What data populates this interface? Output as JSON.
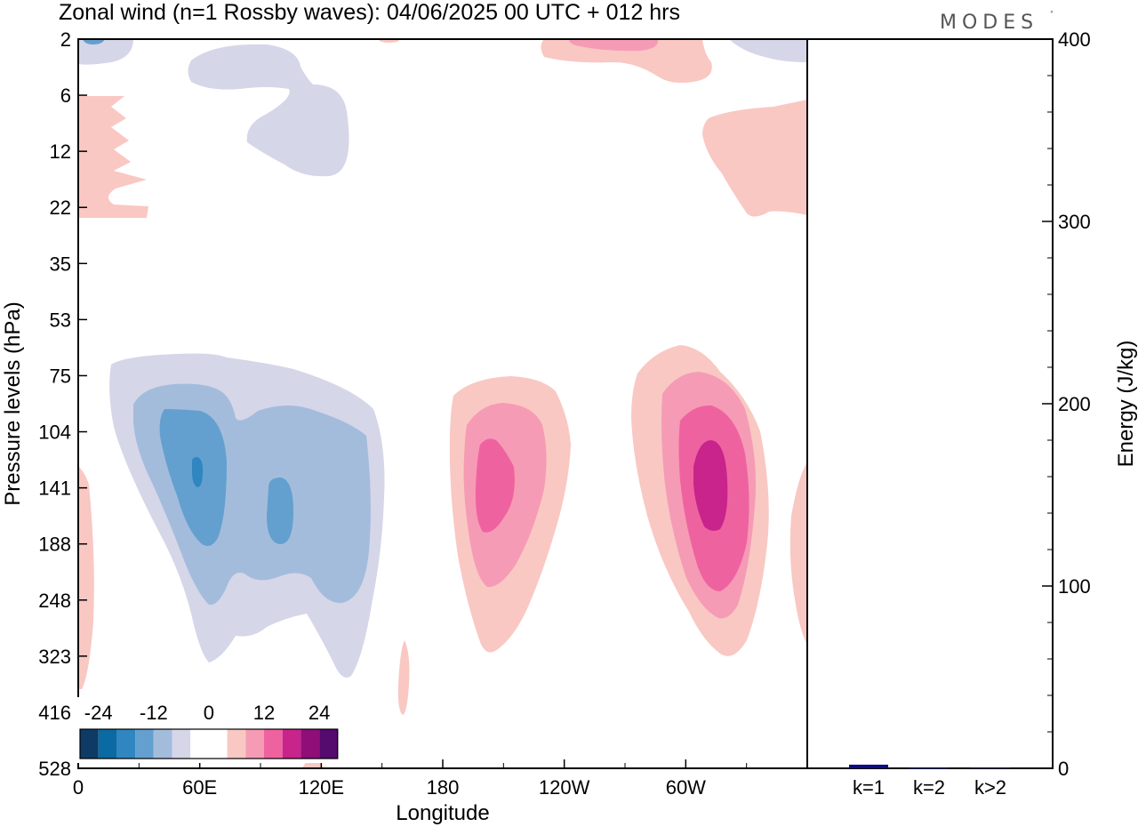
{
  "title": "Zonal wind (n=1 Rossby waves):  04/06/2025  00 UTC  + 012 hrs",
  "logo": "MODES",
  "chart_data": [
    {
      "type": "heatmap",
      "title": "Zonal wind (n=1 Rossby waves):  04/06/2025  00 UTC  + 012 hrs",
      "xlabel": "Longitude",
      "ylabel": "Pressure levels (hPa)",
      "x_ticks": [
        "0",
        "60E",
        "120E",
        "180",
        "120W",
        "60W"
      ],
      "x_tick_degrees": [
        0,
        60,
        120,
        180,
        240,
        300
      ],
      "xlim": [
        0,
        360
      ],
      "y_ticks": [
        "2",
        "6",
        "12",
        "22",
        "35",
        "53",
        "75",
        "104",
        "141",
        "188",
        "248",
        "323",
        "416",
        "528"
      ],
      "y_direction": "pressure increasing downward",
      "colorbar": {
        "labels": [
          "-24",
          "-12",
          "0",
          "12",
          "24"
        ],
        "colors": [
          "#0d3b66",
          "#0b6aa2",
          "#2f86c0",
          "#63a0cf",
          "#a4bcdc",
          "#d5d6e8",
          "#ffffff",
          "#ffffff",
          "#f9c8c3",
          "#f69bb5",
          "#ef62a0",
          "#c8248b",
          "#8e0f78",
          "#550b6e"
        ]
      },
      "features": [
        {
          "sign": "negative",
          "center_lon": 60,
          "center_level": "141",
          "min_value": -21
        },
        {
          "sign": "negative",
          "center_lon": 100,
          "center_level": "141",
          "min_value": -15
        },
        {
          "sign": "positive",
          "center_lon": 197,
          "center_level": "141",
          "max_value": 15
        },
        {
          "sign": "positive",
          "center_lon": 315,
          "center_level": "141",
          "max_value": 21
        },
        {
          "sign": "positive",
          "center_lon": 15,
          "center_level": "12",
          "max_value": 6
        },
        {
          "sign": "positive",
          "center_lon": 345,
          "center_level": "22",
          "max_value": 6
        },
        {
          "sign": "negative",
          "center_lon": 85,
          "center_level": "6",
          "min_value": -6
        }
      ]
    },
    {
      "type": "bar",
      "categories": [
        "k=1",
        "k=2",
        "k>2"
      ],
      "values": [
        2,
        0.3,
        0.5
      ],
      "ylabel": "Energy (J/kg)",
      "ylim": [
        0,
        400
      ],
      "y_ticks": [
        0,
        100,
        200,
        300,
        400
      ],
      "bar_color": "#0a0a8a"
    }
  ]
}
